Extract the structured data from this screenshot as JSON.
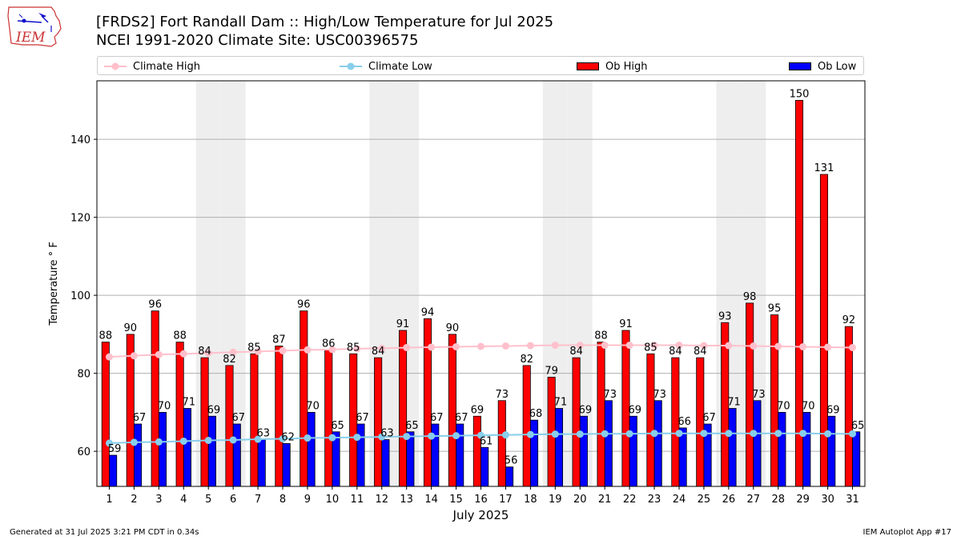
{
  "header": {
    "title_line1": "[FRDS2] Fort Randall Dam :: High/Low Temperature for Jul 2025",
    "title_line2": "NCEI 1991-2020 Climate Site: USC00396575",
    "logo_text": "IEM"
  },
  "legend": {
    "climate_high": "Climate High",
    "climate_low": "Climate Low",
    "ob_high": "Ob High",
    "ob_low": "Ob Low"
  },
  "colors": {
    "ob_high": "#ff0000",
    "ob_low": "#0000ff",
    "climate_high": "#ffc0cb",
    "climate_low": "#87ceeb",
    "weekend_shade": "#eeeeee",
    "grid": "#b0b0b0"
  },
  "chart_data": {
    "type": "bar",
    "xlabel": "July 2025",
    "ylabel": "Temperature $^\\circ$F",
    "ylabel_display": "Temperature ° F",
    "categories": [
      "1",
      "2",
      "3",
      "4",
      "5",
      "6",
      "7",
      "8",
      "9",
      "10",
      "11",
      "12",
      "13",
      "14",
      "15",
      "16",
      "17",
      "18",
      "19",
      "20",
      "21",
      "22",
      "23",
      "24",
      "25",
      "26",
      "27",
      "28",
      "29",
      "30",
      "31"
    ],
    "ylim": [
      51,
      155
    ],
    "yticks": [
      60,
      80,
      100,
      120,
      140
    ],
    "grid": "horizontal",
    "legend_position": "top",
    "shaded_weekend_days": [
      5,
      6,
      12,
      13,
      19,
      20,
      26,
      27
    ],
    "series": [
      {
        "name": "Ob High",
        "kind": "bar",
        "values": [
          88,
          90,
          96,
          88,
          84,
          82,
          85,
          87,
          96,
          86,
          85,
          84,
          91,
          94,
          90,
          69,
          73,
          82,
          79,
          84,
          88,
          91,
          85,
          84,
          84,
          93,
          98,
          95,
          150,
          131,
          92
        ]
      },
      {
        "name": "Ob Low",
        "kind": "bar",
        "values": [
          59,
          67,
          70,
          71,
          69,
          67,
          63,
          62,
          70,
          65,
          67,
          63,
          65,
          67,
          67,
          61,
          56,
          68,
          71,
          69,
          73,
          69,
          73,
          66,
          67,
          71,
          73,
          70,
          70,
          69,
          65
        ]
      },
      {
        "name": "Climate High",
        "kind": "line",
        "values": [
          84.2,
          84.5,
          84.8,
          85.0,
          85.2,
          85.4,
          85.6,
          85.8,
          86.0,
          86.1,
          86.3,
          86.4,
          86.6,
          86.7,
          86.8,
          86.9,
          87.0,
          87.1,
          87.2,
          87.2,
          87.2,
          87.2,
          87.2,
          87.2,
          87.1,
          87.1,
          87.0,
          86.9,
          86.8,
          86.7,
          86.6
        ]
      },
      {
        "name": "Climate Low",
        "kind": "line",
        "values": [
          62.1,
          62.3,
          62.4,
          62.6,
          62.8,
          62.9,
          63.1,
          63.2,
          63.4,
          63.5,
          63.6,
          63.7,
          63.8,
          63.9,
          64.0,
          64.1,
          64.2,
          64.3,
          64.4,
          64.4,
          64.5,
          64.5,
          64.6,
          64.6,
          64.6,
          64.6,
          64.6,
          64.6,
          64.6,
          64.5,
          64.5
        ]
      }
    ]
  },
  "footer": {
    "left": "Generated at 31 Jul 2025 3:21 PM CDT in 0.34s",
    "right": "IEM Autoplot App #17"
  }
}
